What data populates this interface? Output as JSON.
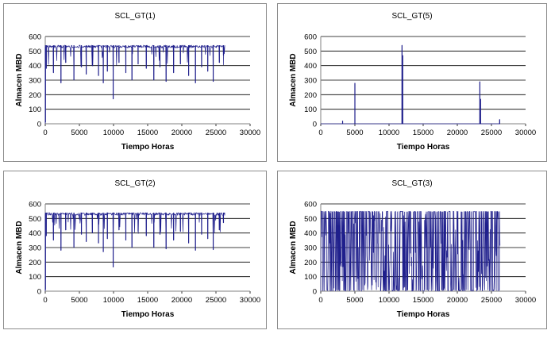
{
  "chart_data": [
    {
      "type": "line",
      "title": "SCL_GT(1)",
      "xlabel": "Tiempo Horas",
      "ylabel": "Almacen MBD",
      "xlim": [
        0,
        30000
      ],
      "ylim": [
        0,
        600
      ],
      "xticks": [
        0,
        5000,
        10000,
        15000,
        20000,
        25000,
        30000
      ],
      "yticks": [
        0,
        100,
        200,
        300,
        400,
        500,
        600
      ],
      "grid": "horizontal",
      "line_color": "#1f1f8c",
      "pattern": "high_with_dips",
      "baseline": 540,
      "x_end": 26280,
      "spikes": [
        {
          "x": 30,
          "y": 10
        },
        {
          "x": 150,
          "y": 380
        },
        {
          "x": 1200,
          "y": 350
        },
        {
          "x": 2300,
          "y": 280
        },
        {
          "x": 3000,
          "y": 420
        },
        {
          "x": 4200,
          "y": 300
        },
        {
          "x": 5300,
          "y": 390
        },
        {
          "x": 6000,
          "y": 340
        },
        {
          "x": 6900,
          "y": 400
        },
        {
          "x": 7800,
          "y": 330
        },
        {
          "x": 8500,
          "y": 280
        },
        {
          "x": 9100,
          "y": 360
        },
        {
          "x": 9950,
          "y": 170
        },
        {
          "x": 10800,
          "y": 420
        },
        {
          "x": 11800,
          "y": 350
        },
        {
          "x": 12700,
          "y": 300
        },
        {
          "x": 13600,
          "y": 410
        },
        {
          "x": 14800,
          "y": 380
        },
        {
          "x": 15900,
          "y": 300
        },
        {
          "x": 16800,
          "y": 390
        },
        {
          "x": 17700,
          "y": 290
        },
        {
          "x": 18800,
          "y": 350
        },
        {
          "x": 19800,
          "y": 410
        },
        {
          "x": 21000,
          "y": 330
        },
        {
          "x": 22000,
          "y": 280
        },
        {
          "x": 22900,
          "y": 390
        },
        {
          "x": 23800,
          "y": 360
        },
        {
          "x": 24600,
          "y": 290
        },
        {
          "x": 25500,
          "y": 420
        },
        {
          "x": 26100,
          "y": 470
        }
      ]
    },
    {
      "type": "line",
      "title": "SCL_GT(5)",
      "xlabel": "Tiempo Horas",
      "ylabel": "Almacen MBD",
      "xlim": [
        0,
        30000
      ],
      "ylim": [
        0,
        600
      ],
      "xticks": [
        0,
        5000,
        10000,
        15000,
        20000,
        25000,
        30000
      ],
      "yticks": [
        0,
        100,
        200,
        300,
        400,
        500,
        600
      ],
      "grid": "horizontal",
      "line_color": "#1f1f8c",
      "pattern": "sparse_spikes",
      "baseline": 0,
      "x_end": 26280,
      "spikes": [
        {
          "x": 3200,
          "y": 20
        },
        {
          "x": 5000,
          "y": 280
        },
        {
          "x": 11900,
          "y": 540
        },
        {
          "x": 12000,
          "y": 470
        },
        {
          "x": 23300,
          "y": 290
        },
        {
          "x": 23400,
          "y": 170
        },
        {
          "x": 26200,
          "y": 30
        }
      ]
    },
    {
      "type": "line",
      "title": "SCL_GT(2)",
      "xlabel": "Tiempo Horas",
      "ylabel": "Almacen MBD",
      "xlim": [
        0,
        30000
      ],
      "ylim": [
        0,
        600
      ],
      "xticks": [
        0,
        5000,
        10000,
        15000,
        20000,
        25000,
        30000
      ],
      "yticks": [
        0,
        100,
        200,
        300,
        400,
        500,
        600
      ],
      "grid": "horizontal",
      "line_color": "#1f1f8c",
      "pattern": "high_with_dips",
      "baseline": 540,
      "x_end": 26280,
      "spikes": [
        {
          "x": 30,
          "y": 10
        },
        {
          "x": 150,
          "y": 380
        },
        {
          "x": 1200,
          "y": 350
        },
        {
          "x": 2300,
          "y": 280
        },
        {
          "x": 3000,
          "y": 420
        },
        {
          "x": 4200,
          "y": 300
        },
        {
          "x": 5300,
          "y": 390
        },
        {
          "x": 6000,
          "y": 340
        },
        {
          "x": 6900,
          "y": 400
        },
        {
          "x": 7800,
          "y": 330
        },
        {
          "x": 8500,
          "y": 270
        },
        {
          "x": 9100,
          "y": 360
        },
        {
          "x": 9950,
          "y": 165
        },
        {
          "x": 10800,
          "y": 420
        },
        {
          "x": 11800,
          "y": 350
        },
        {
          "x": 12700,
          "y": 300
        },
        {
          "x": 13600,
          "y": 410
        },
        {
          "x": 14800,
          "y": 380
        },
        {
          "x": 15900,
          "y": 300
        },
        {
          "x": 16800,
          "y": 390
        },
        {
          "x": 17700,
          "y": 290
        },
        {
          "x": 18800,
          "y": 350
        },
        {
          "x": 19800,
          "y": 410
        },
        {
          "x": 21000,
          "y": 330
        },
        {
          "x": 22000,
          "y": 280
        },
        {
          "x": 22900,
          "y": 390
        },
        {
          "x": 23800,
          "y": 360
        },
        {
          "x": 24600,
          "y": 285
        },
        {
          "x": 25500,
          "y": 420
        },
        {
          "x": 26100,
          "y": 470
        }
      ]
    },
    {
      "type": "line",
      "title": "SCL_GT(3)",
      "xlabel": "Tiempo Horas",
      "ylabel": "Almacen MBD",
      "xlim": [
        0,
        30000
      ],
      "ylim": [
        0,
        600
      ],
      "xticks": [
        0,
        5000,
        10000,
        15000,
        20000,
        25000,
        30000
      ],
      "yticks": [
        0,
        100,
        200,
        300,
        400,
        500,
        600
      ],
      "grid": "horizontal",
      "line_color": "#1f1f8c",
      "pattern": "dense_oscillation",
      "baseline": 0,
      "range": [
        0,
        550
      ],
      "x_end": 26280,
      "spikes": []
    }
  ]
}
